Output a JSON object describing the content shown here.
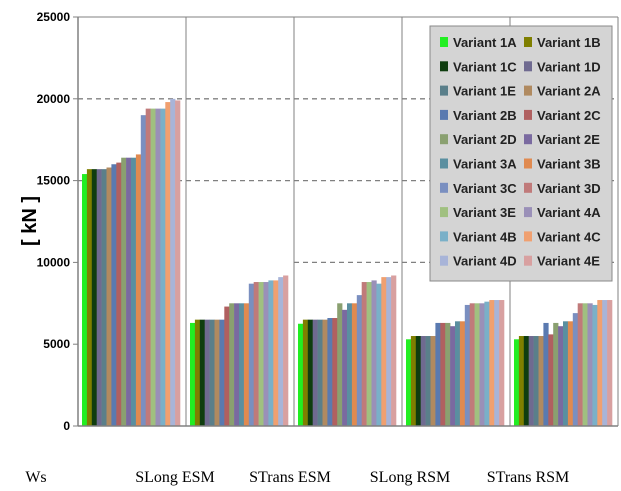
{
  "chart_data": {
    "type": "bar",
    "ylabel": "[ kN ]",
    "ylim": [
      0,
      25000
    ],
    "yticks": [
      0,
      5000,
      10000,
      15000,
      20000,
      25000
    ],
    "grid": "horizontal dashed at 15000 and 20000 (10000 in right groups)",
    "legend_position": "top-right, two columns",
    "categories": [
      "Ws",
      "SLong ESM",
      "STrans ESM",
      "SLong RSM",
      "STrans RSM"
    ],
    "series": [
      {
        "name": "Variant 1A",
        "color": "#22ee22",
        "values": [
          15400,
          6300,
          6250,
          5300,
          5300
        ]
      },
      {
        "name": "Variant 1B",
        "color": "#7f7f00",
        "values": [
          15700,
          6500,
          6500,
          5500,
          5500
        ]
      },
      {
        "name": "Variant 1C",
        "color": "#0f3d0f",
        "values": [
          15700,
          6500,
          6500,
          5500,
          5500
        ]
      },
      {
        "name": "Variant 1D",
        "color": "#6f6a90",
        "values": [
          15700,
          6500,
          6500,
          5500,
          5500
        ]
      },
      {
        "name": "Variant 1E",
        "color": "#5a7f8a",
        "values": [
          15700,
          6500,
          6500,
          5500,
          5500
        ]
      },
      {
        "name": "Variant 2A",
        "color": "#b08a60",
        "values": [
          15800,
          6500,
          6500,
          5500,
          5500
        ]
      },
      {
        "name": "Variant 2B",
        "color": "#5a7ab0",
        "values": [
          16000,
          6500,
          6600,
          6300,
          6300
        ]
      },
      {
        "name": "Variant 2C",
        "color": "#b06060",
        "values": [
          16100,
          7300,
          6600,
          6300,
          5600
        ]
      },
      {
        "name": "Variant 2D",
        "color": "#8aa070",
        "values": [
          16400,
          7500,
          7500,
          6300,
          6300
        ]
      },
      {
        "name": "Variant 2E",
        "color": "#7a6aa0",
        "values": [
          16400,
          7500,
          7100,
          6100,
          6100
        ]
      },
      {
        "name": "Variant 3A",
        "color": "#5a8fa0",
        "values": [
          16400,
          7500,
          7500,
          6400,
          6400
        ]
      },
      {
        "name": "Variant 3B",
        "color": "#e08a50",
        "values": [
          16600,
          7500,
          7500,
          6400,
          6400
        ]
      },
      {
        "name": "Variant 3C",
        "color": "#7a8fc0",
        "values": [
          19000,
          8700,
          8000,
          7400,
          6900
        ]
      },
      {
        "name": "Variant 3D",
        "color": "#c07a7a",
        "values": [
          19400,
          8800,
          8800,
          7500,
          7500
        ]
      },
      {
        "name": "Variant 3E",
        "color": "#a0c080",
        "values": [
          19400,
          8800,
          8800,
          7500,
          7500
        ]
      },
      {
        "name": "Variant 4A",
        "color": "#9a90b8",
        "values": [
          19400,
          8800,
          8900,
          7500,
          7500
        ]
      },
      {
        "name": "Variant 4B",
        "color": "#7ab0c8",
        "values": [
          19400,
          8900,
          8700,
          7600,
          7400
        ]
      },
      {
        "name": "Variant 4C",
        "color": "#f0a070",
        "values": [
          19800,
          8900,
          9100,
          7700,
          7700
        ]
      },
      {
        "name": "Variant 4D",
        "color": "#a8b4d8",
        "values": [
          20000,
          9100,
          9100,
          7700,
          7700
        ]
      },
      {
        "name": "Variant 4E",
        "color": "#d8a0a0",
        "values": [
          19900,
          9200,
          9200,
          7700,
          7700
        ]
      }
    ]
  }
}
